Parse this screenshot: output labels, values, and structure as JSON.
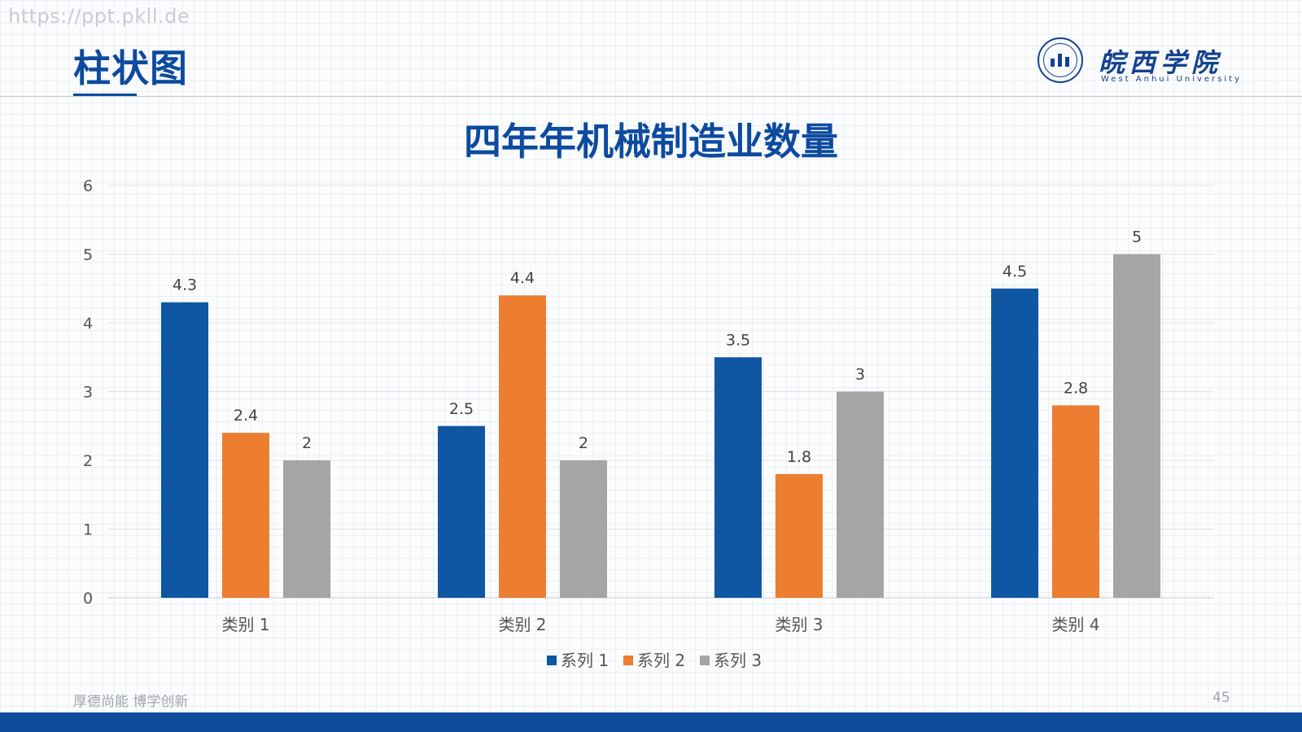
{
  "watermark": "https://ppt.pkll.de",
  "slide": {
    "title": "柱状图",
    "motto": "厚德尚能 博学创新",
    "page_number": "45"
  },
  "logo": {
    "name": "皖西学院",
    "subtitle": "West Anhui University"
  },
  "colors": {
    "series1": "#0f56a3",
    "series2": "#ed7d31",
    "series3": "#a5a5a5",
    "title": "#0d4aa0",
    "footer": "#0f4c9c"
  },
  "chart_data": {
    "type": "bar",
    "title": "四年年机械制造业数量",
    "categories": [
      "类别 1",
      "类别 2",
      "类别 3",
      "类别 4"
    ],
    "series": [
      {
        "name": "系列 1",
        "values": [
          4.3,
          2.5,
          3.5,
          4.5
        ]
      },
      {
        "name": "系列 2",
        "values": [
          2.4,
          4.4,
          1.8,
          2.8
        ]
      },
      {
        "name": "系列 3",
        "values": [
          2,
          2,
          3,
          5
        ]
      }
    ],
    "ylim": [
      0,
      6
    ],
    "yticks": [
      0,
      1,
      2,
      3,
      4,
      5,
      6
    ],
    "grid": true,
    "legend": "bottom",
    "data_labels": true
  }
}
